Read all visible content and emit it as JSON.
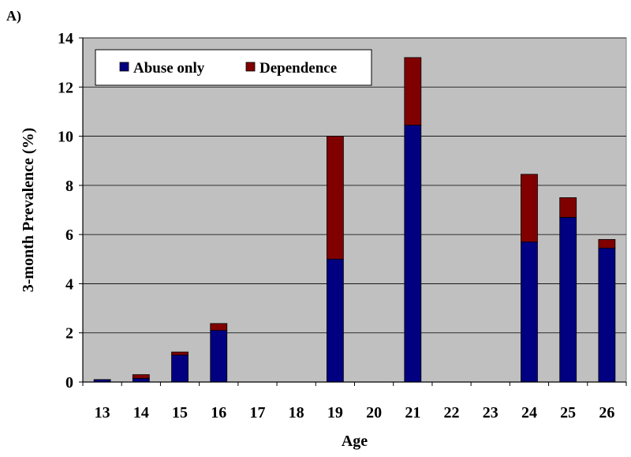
{
  "chart_data": {
    "panel_label": "A)",
    "type": "bar",
    "stacked": true,
    "xlabel": "Age",
    "ylabel": "3-month Prevalence (%)",
    "ylim": [
      0,
      14
    ],
    "yticks": [
      "0",
      "2",
      "4",
      "6",
      "8",
      "10",
      "12",
      "14"
    ],
    "categories": [
      "13",
      "14",
      "15",
      "16",
      "17",
      "18",
      "19",
      "20",
      "21",
      "22",
      "23",
      "24",
      "25",
      "26"
    ],
    "series": [
      {
        "name": "Abuse only",
        "color": "#000080",
        "values": [
          0.1,
          0.15,
          1.1,
          2.1,
          0,
          0,
          5.0,
          0,
          10.45,
          0,
          0,
          5.7,
          6.7,
          5.45
        ]
      },
      {
        "name": "Dependence",
        "color": "#800000",
        "values": [
          0,
          0.15,
          0.12,
          0.28,
          0,
          0,
          5.0,
          0,
          2.75,
          0,
          0,
          2.75,
          0.8,
          0.35
        ]
      }
    ],
    "grid": true,
    "legend": "top-left",
    "plot_background": "#c0c0c0"
  }
}
